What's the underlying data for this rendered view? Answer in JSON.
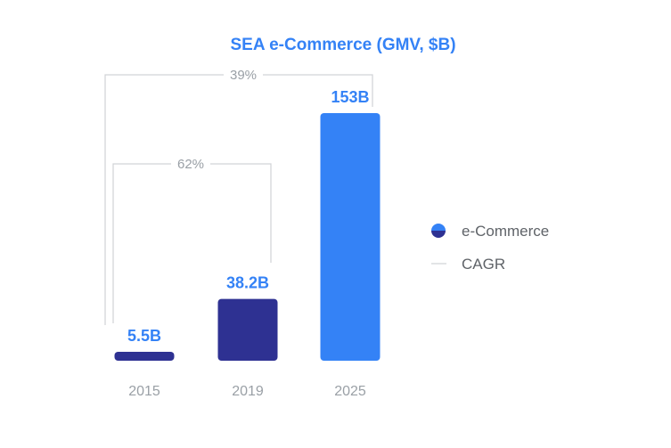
{
  "chart_data": {
    "type": "bar",
    "title": "SEA e-Commerce (GMV, $B)",
    "categories": [
      "2015",
      "2019",
      "2025"
    ],
    "series": [
      {
        "name": "e-Commerce",
        "values": [
          5.5,
          38.2,
          153
        ]
      }
    ],
    "value_labels": [
      "5.5B",
      "38.2B",
      "153B"
    ],
    "bar_colors": [
      "#2e3192",
      "#2e3192",
      "#3482f6"
    ],
    "ylim": [
      0,
      153
    ],
    "grid": false,
    "legend_position": "right",
    "cagr_annotations": [
      {
        "label": "39%",
        "from": "2015",
        "to": "2025"
      },
      {
        "label": "62%",
        "from": "2015",
        "to": "2019"
      }
    ],
    "legend": [
      {
        "label": "e-Commerce",
        "icon": "half-circle-icon"
      },
      {
        "label": "CAGR",
        "icon": "line-icon"
      }
    ]
  },
  "colors": {
    "title": "#3482f6",
    "value_label": "#3482f6",
    "bar_dark": "#2e3192",
    "bar_light": "#3482f6",
    "bracket": "#d0d3d6",
    "tick": "#9aa0a6",
    "legend_text": "#5f6368"
  }
}
